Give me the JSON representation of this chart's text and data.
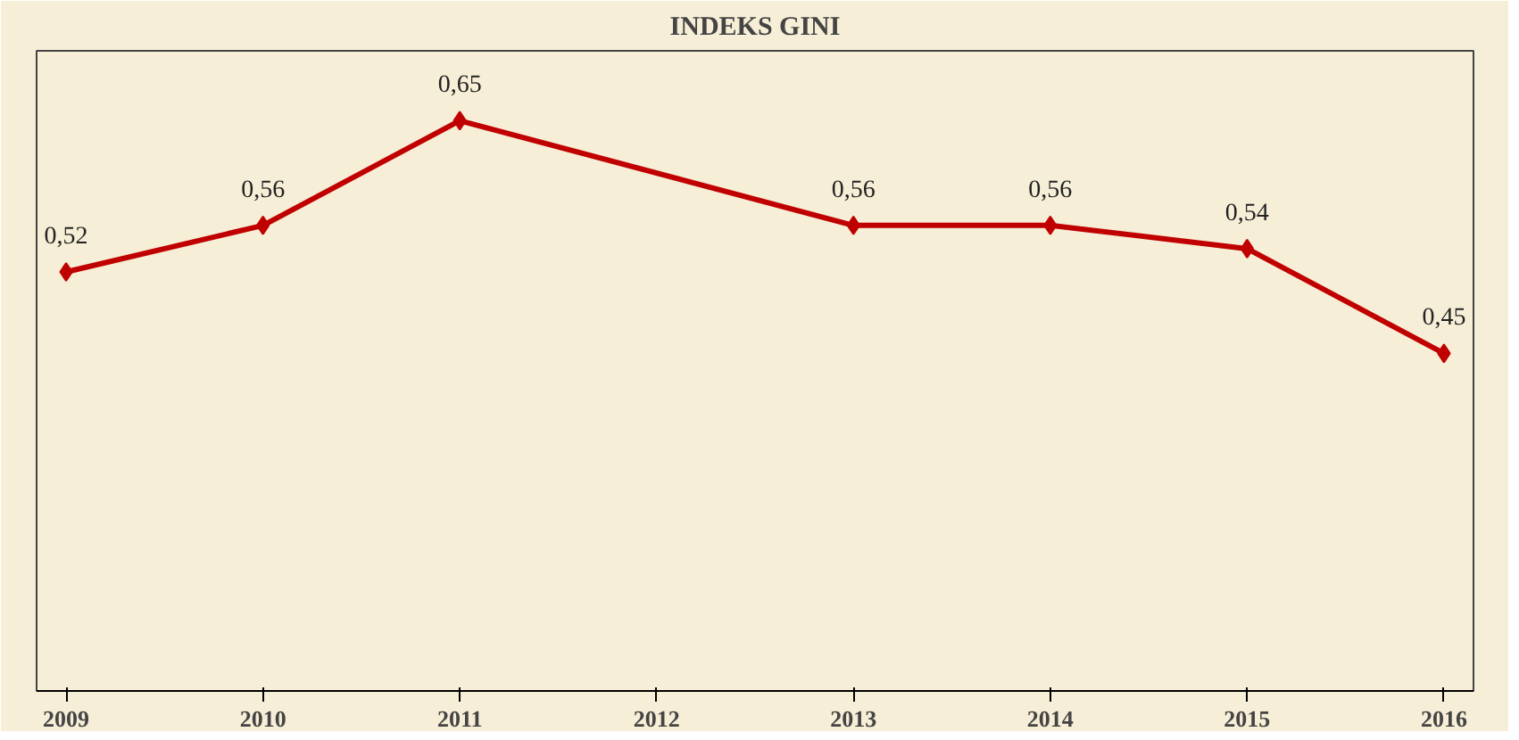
{
  "chart_data": {
    "type": "line",
    "title": "INDEKS GINI",
    "x": [
      2009,
      2010,
      2011,
      2013,
      2014,
      2015,
      2016
    ],
    "xlim": [
      2008.85,
      2016.15
    ],
    "xticks": [
      2009,
      2010,
      2011,
      2012,
      2013,
      2014,
      2015,
      2016
    ],
    "series": [
      {
        "color": "#c00000",
        "values": [
          0.52,
          0.56,
          0.65,
          0.56,
          0.56,
          0.54,
          0.45
        ],
        "value_labels": [
          "0,52",
          "0,56",
          "0,65",
          "0,56",
          "0,56",
          "0,54",
          "0,45"
        ]
      }
    ],
    "marker": "diamond",
    "line_style": "solid",
    "grid": false,
    "tick_labels": "x"
  }
}
